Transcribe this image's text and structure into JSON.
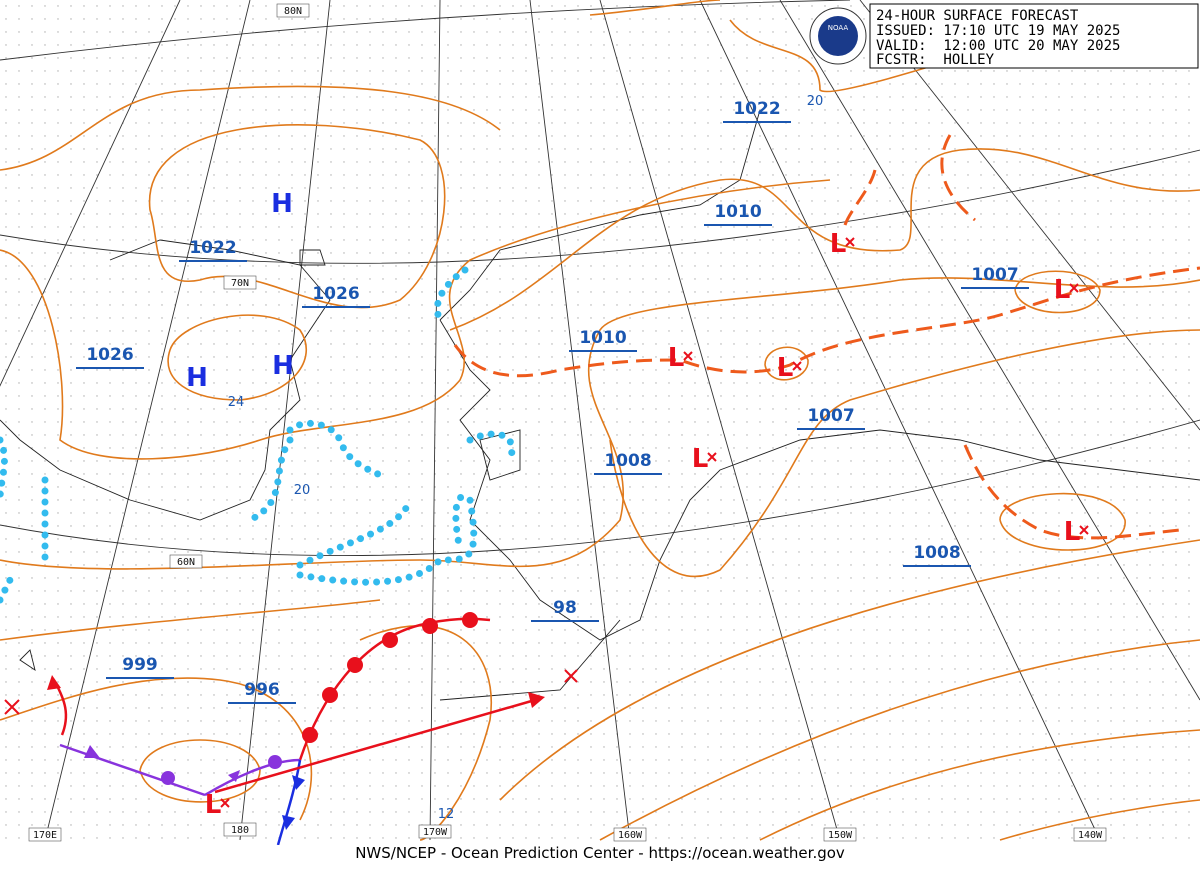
{
  "header": {
    "lines": [
      "24-HOUR SURFACE FORECAST",
      "ISSUED: 17:10 UTC 19 MAY 2025",
      "VALID:  12:00 UTC 20 MAY 2025",
      "FCSTR:  HOLLEY"
    ],
    "logo": "NOAA"
  },
  "isobar_labels": [
    1022,
    1010,
    1007,
    1010,
    1022,
    1026,
    1026,
    1008,
    1007,
    1008,
    98,
    999,
    996
  ],
  "contour_small_labels": [
    20,
    24,
    20,
    12
  ],
  "highs": [
    "H",
    "H",
    "H"
  ],
  "lows": [
    "L",
    "L",
    "L",
    "L",
    "L",
    "L",
    "L"
  ],
  "graticule_labels": [
    "80N",
    "70N",
    "60N",
    "170E",
    "180",
    "170W",
    "160W",
    "150W",
    "140W"
  ],
  "footer": "NWS/NCEP - Ocean Prediction Center - https://ocean.weather.gov"
}
